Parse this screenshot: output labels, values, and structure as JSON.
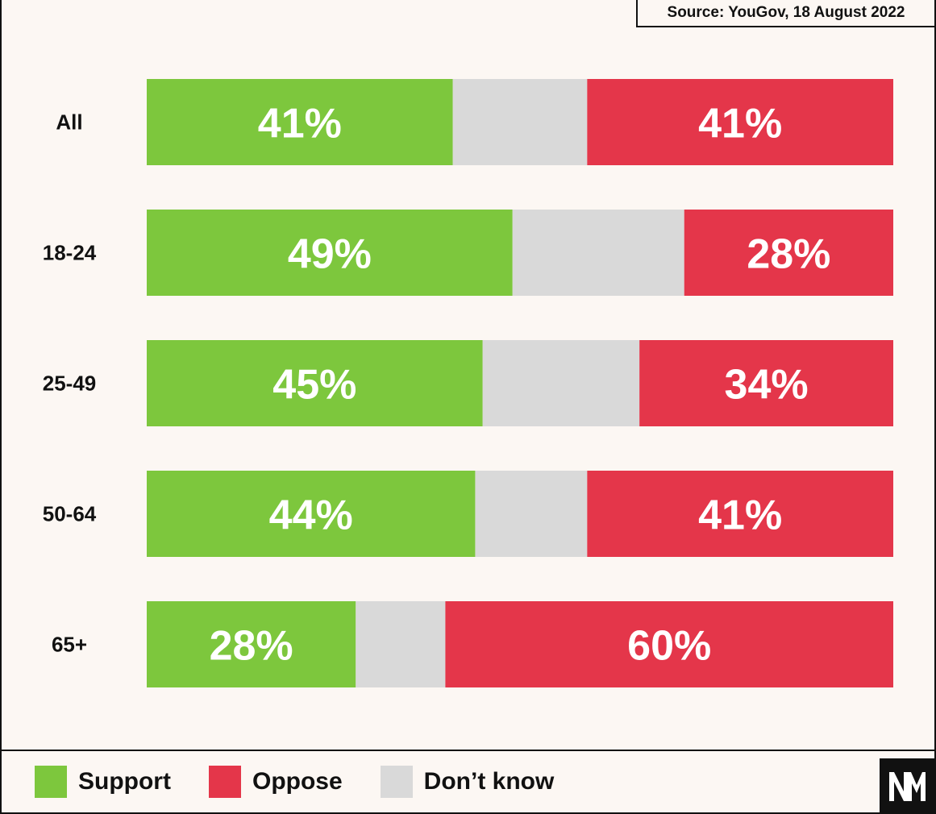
{
  "source_note": "Source: YouGov, 18 August 2022",
  "colors": {
    "support": "#7dc73d",
    "oppose": "#e4364a",
    "dont_know": "#d9d9d9"
  },
  "chart_data": {
    "type": "bar",
    "orientation": "horizontal",
    "stacked": true,
    "categories": [
      "All",
      "18-24",
      "25-49",
      "50-64",
      "65+"
    ],
    "series": [
      {
        "name": "Support",
        "values": [
          41,
          49,
          45,
          44,
          28
        ],
        "labels": [
          "41%",
          "49%",
          "45%",
          "44%",
          "28%"
        ]
      },
      {
        "name": "Don’t know",
        "values": [
          18,
          23,
          21,
          15,
          12
        ],
        "labels": [
          "",
          "",
          "",
          "",
          ""
        ]
      },
      {
        "name": "Oppose",
        "values": [
          41,
          28,
          34,
          41,
          60
        ],
        "labels": [
          "41%",
          "28%",
          "34%",
          "41%",
          "60%"
        ]
      }
    ],
    "xlim": [
      0,
      100
    ],
    "legend_position": "bottom"
  },
  "legend": [
    {
      "label": "Support",
      "color": "#7dc73d"
    },
    {
      "label": "Oppose",
      "color": "#e4364a"
    },
    {
      "label": "Don’t know",
      "color": "#d9d9d9"
    }
  ],
  "logo": {
    "icon": "nm-logo-icon"
  }
}
